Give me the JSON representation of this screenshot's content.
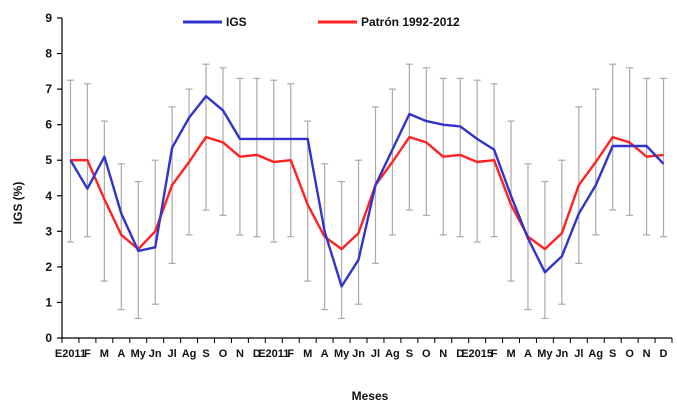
{
  "chart_data": {
    "type": "line",
    "title": "",
    "xlabel": "Meses",
    "ylabel": "IGS (%)",
    "ylim": [
      0,
      9
    ],
    "yticks": [
      "0",
      "1",
      "2",
      "3",
      "4",
      "5",
      "6",
      "7",
      "8",
      "9"
    ],
    "grid": false,
    "legend_position": "top",
    "categories": [
      "E2011",
      "F",
      "M",
      "A",
      "My",
      "Jn",
      "Jl",
      "Ag",
      "S",
      "O",
      "N",
      "D",
      "E2011",
      "F",
      "M",
      "A",
      "My",
      "Jn",
      "Jl",
      "Ag",
      "S",
      "O",
      "N",
      "D",
      "E2015",
      "F",
      "M",
      "A",
      "My",
      "Jn",
      "Jl",
      "Ag",
      "S",
      "O",
      "N",
      "D"
    ],
    "tick_labels": [
      "E2011",
      "F",
      "M",
      "A",
      "My",
      "Jn",
      "Jl",
      "Ag",
      "S",
      "O",
      "N",
      "D",
      "E2011",
      "F",
      "M",
      "A",
      "My",
      "Jn",
      "Jl",
      "Ag",
      "S",
      "O",
      "N",
      "D",
      "E2015",
      "F",
      "M",
      "A",
      "My",
      "Jn",
      "Jl",
      "Ag",
      "S",
      "O",
      "N",
      "D"
    ],
    "series": [
      {
        "name": "IGS",
        "color": "#3333cc",
        "values": [
          5.0,
          4.2,
          5.1,
          3.5,
          2.45,
          2.55,
          5.35,
          6.2,
          6.8,
          6.4,
          5.6,
          5.6,
          5.6,
          5.6,
          5.6,
          3.0,
          1.45,
          2.2,
          4.3,
          5.3,
          6.3,
          6.1,
          6.0,
          5.95,
          5.6,
          5.3,
          4.0,
          2.8,
          1.85,
          2.3,
          3.5,
          4.3,
          5.4,
          5.4,
          5.4,
          4.9
        ]
      },
      {
        "name": "Patrón 1992-2012",
        "color": "#ff2222",
        "values": [
          5.0,
          5.0,
          3.9,
          2.9,
          2.5,
          3.0,
          4.3,
          4.95,
          5.65,
          5.5,
          5.1,
          5.15,
          4.95,
          5.0,
          3.75,
          2.85,
          2.5,
          2.95,
          4.3,
          4.95,
          5.65,
          5.5,
          5.1,
          5.15,
          4.95,
          5.0,
          3.75,
          2.85,
          2.5,
          2.95,
          4.3,
          4.95,
          5.65,
          5.5,
          5.1,
          5.15
        ]
      }
    ],
    "error_bars": {
      "series": "Patrón 1992-2012",
      "low": [
        2.7,
        2.85,
        1.6,
        0.8,
        0.55,
        0.95,
        2.1,
        2.9,
        3.6,
        3.45,
        2.9,
        2.85,
        2.7,
        2.85,
        1.6,
        0.8,
        0.55,
        0.95,
        2.1,
        2.9,
        3.6,
        3.45,
        2.9,
        2.85,
        2.7,
        2.85,
        1.6,
        0.8,
        0.55,
        0.95,
        2.1,
        2.9,
        3.6,
        3.45,
        2.9,
        2.85
      ],
      "high": [
        7.25,
        7.15,
        6.1,
        4.9,
        4.4,
        5.0,
        6.5,
        7.0,
        7.7,
        7.6,
        7.3,
        7.3,
        7.25,
        7.15,
        6.1,
        4.9,
        4.4,
        5.0,
        6.5,
        7.0,
        7.7,
        7.6,
        7.3,
        7.3,
        7.25,
        7.15,
        6.1,
        4.9,
        4.4,
        5.0,
        6.5,
        7.0,
        7.7,
        7.6,
        7.3,
        7.3
      ],
      "color": "#aaaaaa"
    }
  }
}
